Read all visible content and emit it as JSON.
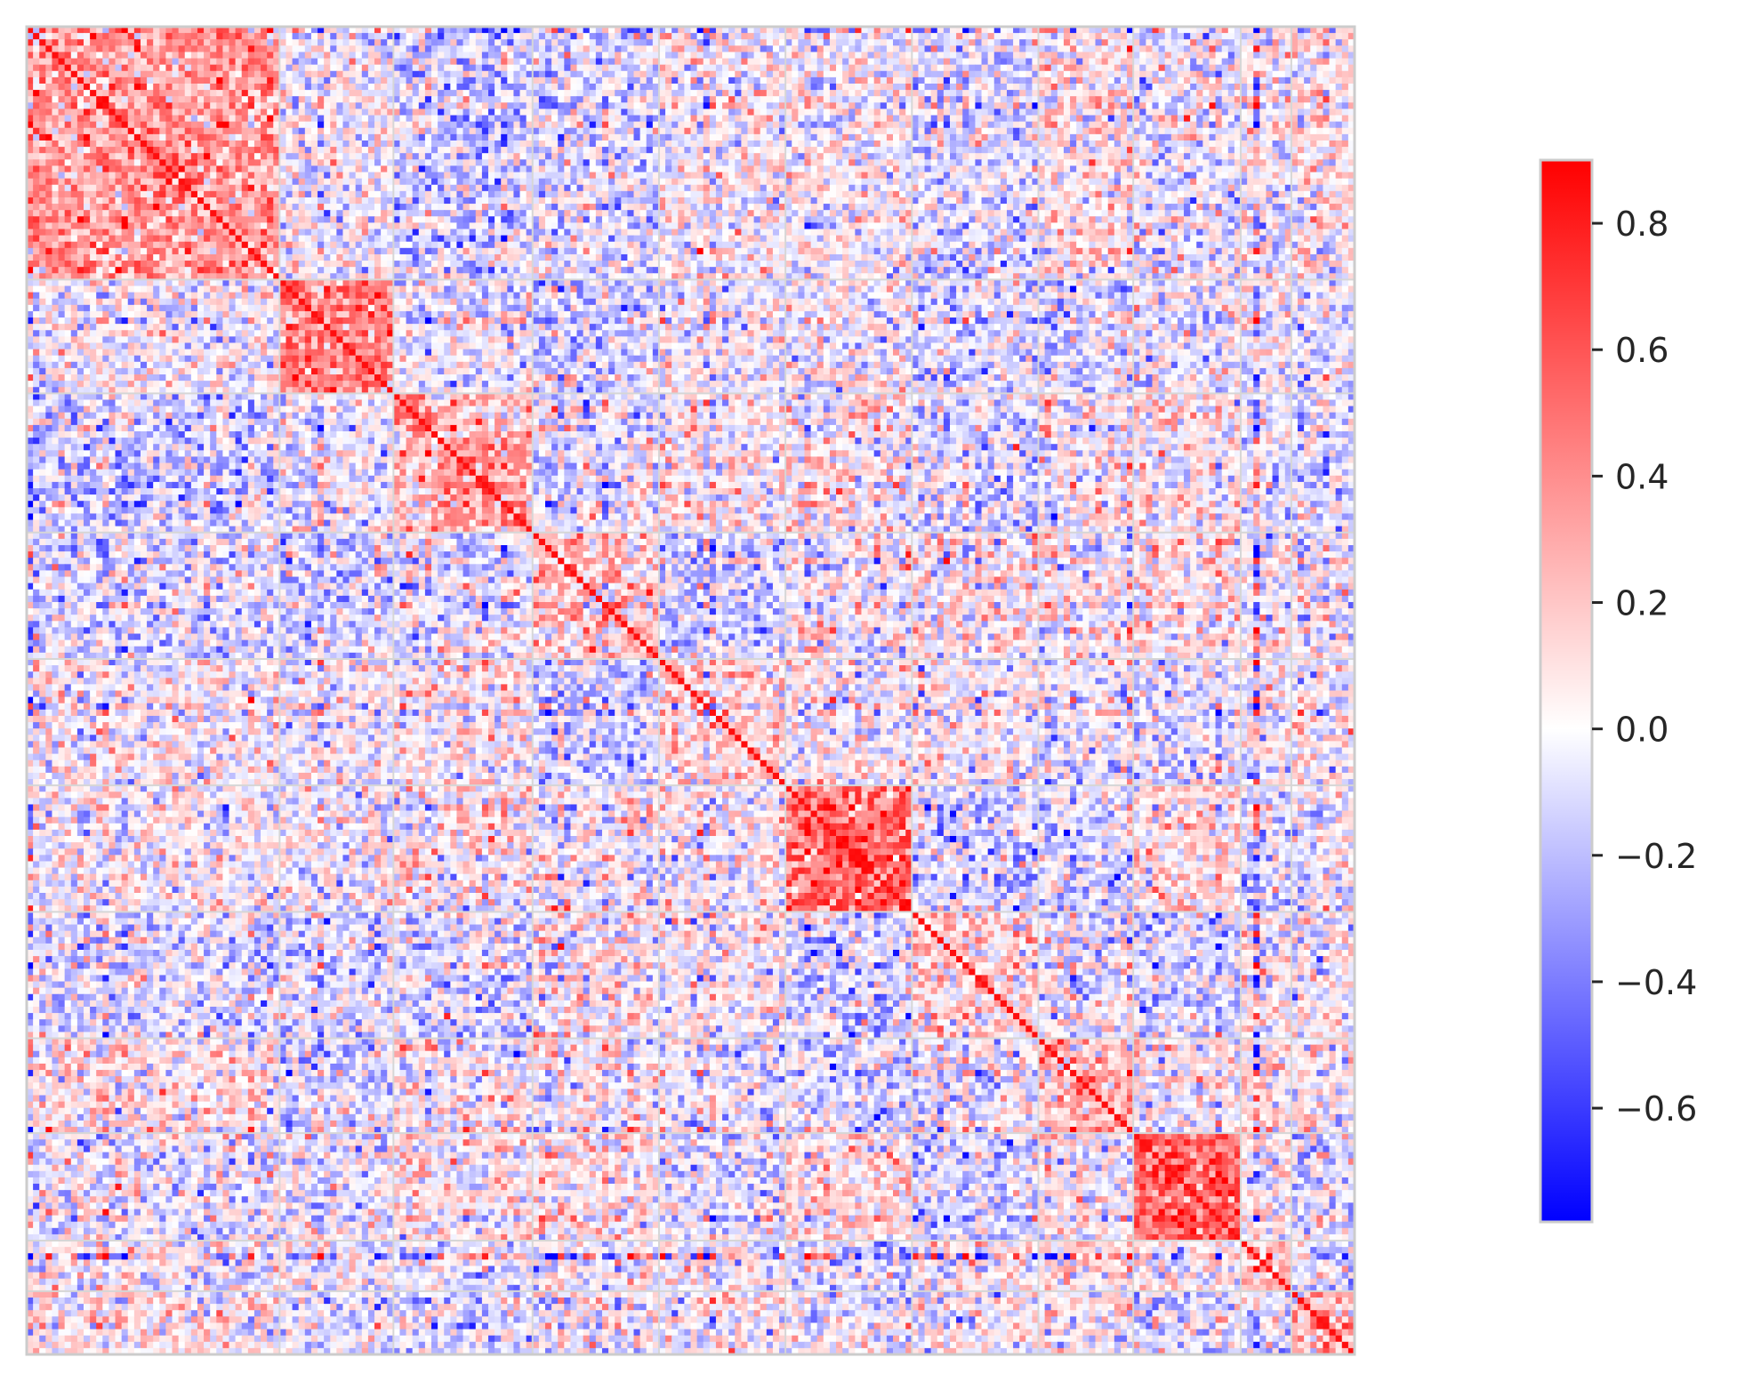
{
  "chart_data": {
    "type": "heatmap",
    "title": "",
    "xlabel": "",
    "ylabel": "",
    "grid": true,
    "matrix_size": 210,
    "block_boundaries": [
      0,
      40,
      58,
      80,
      100,
      120,
      140,
      160,
      175,
      192,
      200,
      210
    ],
    "within_block_mean": [
      0.35,
      0.45,
      0.3,
      0.2,
      0.12,
      0.5,
      0.15,
      0.25,
      0.55,
      0.25,
      0.3
    ],
    "off_block_mean_sign": "mixed, mostly weakly negative",
    "value_range": [
      -0.78,
      0.9
    ],
    "colormap": {
      "name": "bwr",
      "low": "#0000ff",
      "mid": "#ffffff",
      "high": "#ff0000"
    },
    "colorbar": {
      "vmin": -0.78,
      "vmax": 0.9,
      "ticks": [
        -0.6,
        -0.4,
        -0.2,
        0.0,
        0.2,
        0.4,
        0.6,
        0.8
      ],
      "tick_labels": [
        "−0.6",
        "−0.4",
        "−0.2",
        "0.0",
        "0.2",
        "0.4",
        "0.6",
        "0.8"
      ]
    },
    "axis_tick_labels": "none",
    "legend": "colorbar right"
  }
}
